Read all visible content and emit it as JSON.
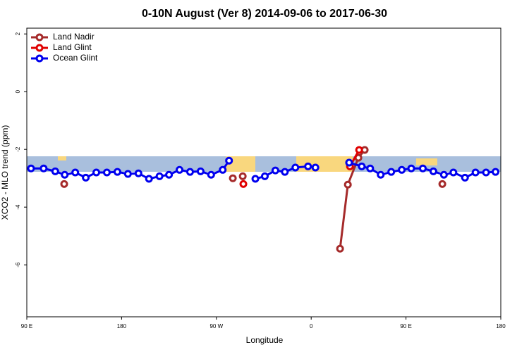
{
  "chart_data": {
    "type": "line",
    "title": "0-10N August (Ver 8)   2014-09-06 to 2017-06-30",
    "x_label": "Longitude",
    "y_label": "XCO2 - MLO trend (ppm)",
    "xlim": [
      90,
      540
    ],
    "xticks": [
      {
        "value": 90,
        "label": "90 E"
      },
      {
        "value": 180,
        "label": "180"
      },
      {
        "value": 270,
        "label": "90 W"
      },
      {
        "value": 360,
        "label": "0"
      },
      {
        "value": 450,
        "label": "90 E"
      },
      {
        "value": 540,
        "label": "180"
      }
    ],
    "ylim": [
      -7.8,
      2.2
    ],
    "yticks": [
      -6,
      -4,
      -2,
      0,
      2
    ],
    "legend": "top-left",
    "series": [
      {
        "name": "Land Nadir",
        "color": "#a52a2a",
        "x": [
          125.5,
          null,
          285.6,
          null,
          295,
          null,
          387.4,
          394.8,
          404.8,
          410.8,
          null,
          484.5
        ],
        "values": [
          -3.2,
          null,
          -3.0,
          null,
          -2.93,
          null,
          -5.44,
          -3.22,
          -2.29,
          -2.02,
          null,
          -3.2
        ]
      },
      {
        "name": "Land Glint",
        "color": "#e00000",
        "x": [
          295.6,
          null,
          396.8,
          405.5
        ],
        "values": [
          -3.2,
          null,
          -2.59,
          -2.02
        ]
      },
      {
        "name": "Ocean Glint",
        "color": "#0000ee",
        "x": [
          94,
          106,
          117,
          126,
          136,
          146,
          156,
          166,
          176,
          186,
          196,
          206,
          216,
          225,
          235,
          245,
          255,
          265,
          276,
          282,
          null,
          307,
          316,
          326,
          335,
          345,
          357,
          364,
          null,
          396,
          408,
          416,
          426,
          436,
          446,
          455,
          466,
          476,
          486,
          495,
          506,
          516,
          526,
          535
        ],
        "values": [
          -2.66,
          -2.66,
          -2.76,
          -2.88,
          -2.8,
          -2.98,
          -2.8,
          -2.8,
          -2.78,
          -2.85,
          -2.83,
          -3.02,
          -2.93,
          -2.88,
          -2.71,
          -2.78,
          -2.76,
          -2.88,
          -2.71,
          -2.39,
          null,
          -3.02,
          -2.93,
          -2.73,
          -2.78,
          -2.63,
          -2.59,
          -2.63,
          null,
          -2.46,
          -2.59,
          -2.66,
          -2.88,
          -2.78,
          -2.71,
          -2.66,
          -2.66,
          -2.76,
          -2.88,
          -2.8,
          -2.98,
          -2.8,
          -2.8,
          -2.78
        ]
      }
    ]
  }
}
